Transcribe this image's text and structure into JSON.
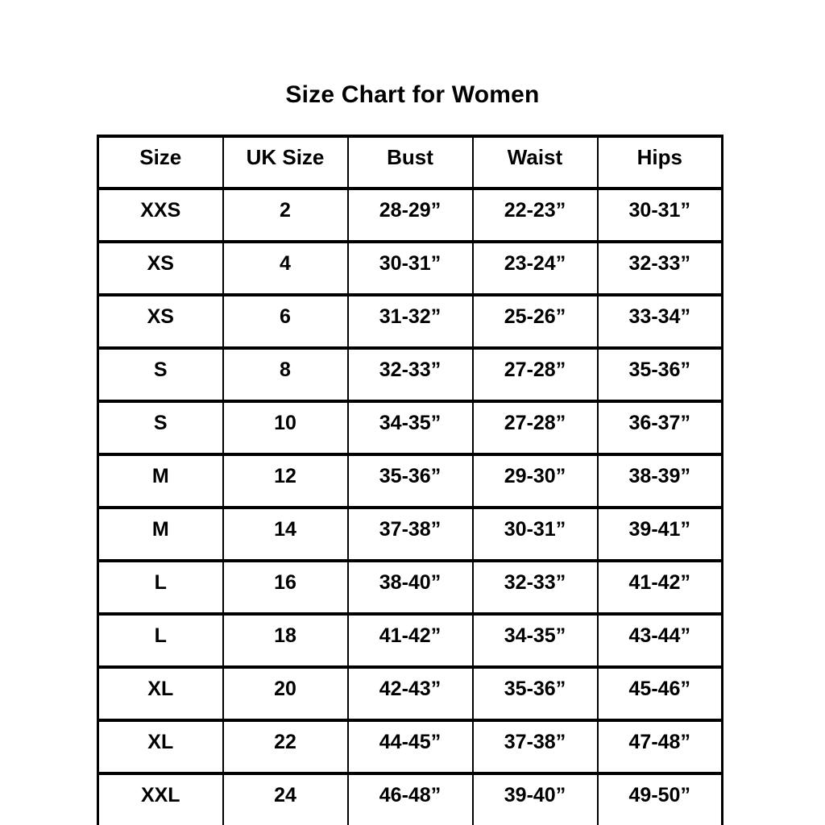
{
  "page_title": "Size Chart for Women",
  "chart_data": {
    "type": "table",
    "title": "Size Chart for Women",
    "columns": [
      "Size",
      "UK Size",
      "Bust",
      "Waist",
      "Hips"
    ],
    "rows": [
      [
        "XXS",
        "2",
        "28-29”",
        "22-23”",
        "30-31”"
      ],
      [
        "XS",
        "4",
        "30-31”",
        "23-24”",
        "32-33”"
      ],
      [
        "XS",
        "6",
        "31-32”",
        "25-26”",
        "33-34”"
      ],
      [
        "S",
        "8",
        "32-33”",
        "27-28”",
        "35-36”"
      ],
      [
        "S",
        "10",
        "34-35”",
        "27-28”",
        "36-37”"
      ],
      [
        "M",
        "12",
        "35-36”",
        "29-30”",
        "38-39”"
      ],
      [
        "M",
        "14",
        "37-38”",
        "30-31”",
        "39-41”"
      ],
      [
        "L",
        "16",
        "38-40”",
        "32-33”",
        "41-42”"
      ],
      [
        "L",
        "18",
        "41-42”",
        "34-35”",
        "43-44”"
      ],
      [
        "XL",
        "20",
        "42-43”",
        "35-36”",
        "45-46”"
      ],
      [
        "XL",
        "22",
        "44-45”",
        "37-38”",
        "47-48”"
      ],
      [
        "XXL",
        "24",
        "46-48”",
        "39-40”",
        "49-50”"
      ]
    ],
    "layout": {
      "columns_equal_width": true,
      "grid": "on",
      "border_color": "#000000",
      "text_color": "#000000",
      "background_color": "#ffffff"
    }
  }
}
